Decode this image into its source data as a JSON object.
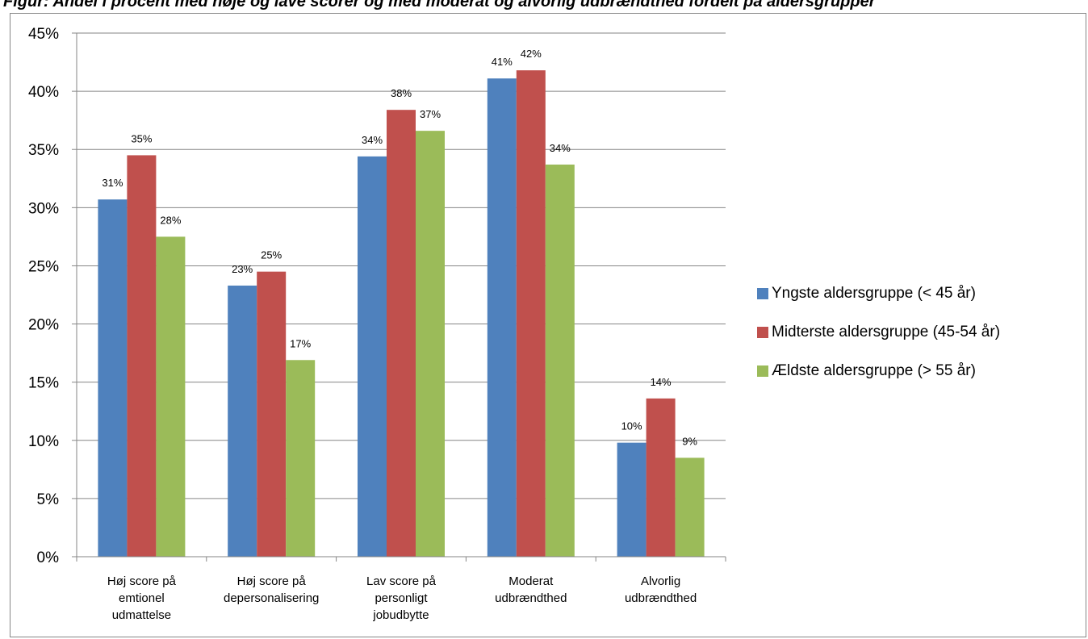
{
  "header": {
    "caption": "Figur: Andel i procent med høje og lave scorer og med moderat og alvorlig udbrændthed fordelt på aldersgrupper"
  },
  "colors": {
    "series": [
      "#4f81bd",
      "#c0504d",
      "#9bbb59"
    ],
    "grid": "#868686",
    "frame": "#868686"
  },
  "chart_data": {
    "type": "bar",
    "categories": [
      [
        "Høj score på",
        "emtionel",
        "udmattelse"
      ],
      [
        "Høj score på",
        "depersonalisering"
      ],
      [
        "Lav score på",
        "personligt",
        "jobudbytte"
      ],
      [
        "Moderat",
        "udbrændthed"
      ],
      [
        "Alvorlig",
        "udbrændthed"
      ]
    ],
    "series": [
      {
        "name": "Yngste aldersgruppe (< 45 år)",
        "values": [
          30.7,
          23.3,
          34.4,
          41.1,
          9.8
        ],
        "labels": [
          "31%",
          "23%",
          "34%",
          "41%",
          "10%"
        ]
      },
      {
        "name": "Midterste aldersgruppe (45-54 år)",
        "values": [
          34.5,
          24.5,
          38.4,
          41.8,
          13.6
        ],
        "labels": [
          "35%",
          "25%",
          "38%",
          "42%",
          "14%"
        ]
      },
      {
        "name": "Ældste aldersgruppe (> 55 år)",
        "values": [
          27.5,
          16.9,
          36.6,
          33.7,
          8.5
        ],
        "labels": [
          "28%",
          "17%",
          "37%",
          "34%",
          "9%"
        ]
      }
    ],
    "yticks": [
      "0%",
      "5%",
      "10%",
      "15%",
      "20%",
      "25%",
      "30%",
      "35%",
      "40%",
      "45%"
    ],
    "ylim": [
      0,
      45
    ],
    "grid": true,
    "legend_position": "right"
  }
}
